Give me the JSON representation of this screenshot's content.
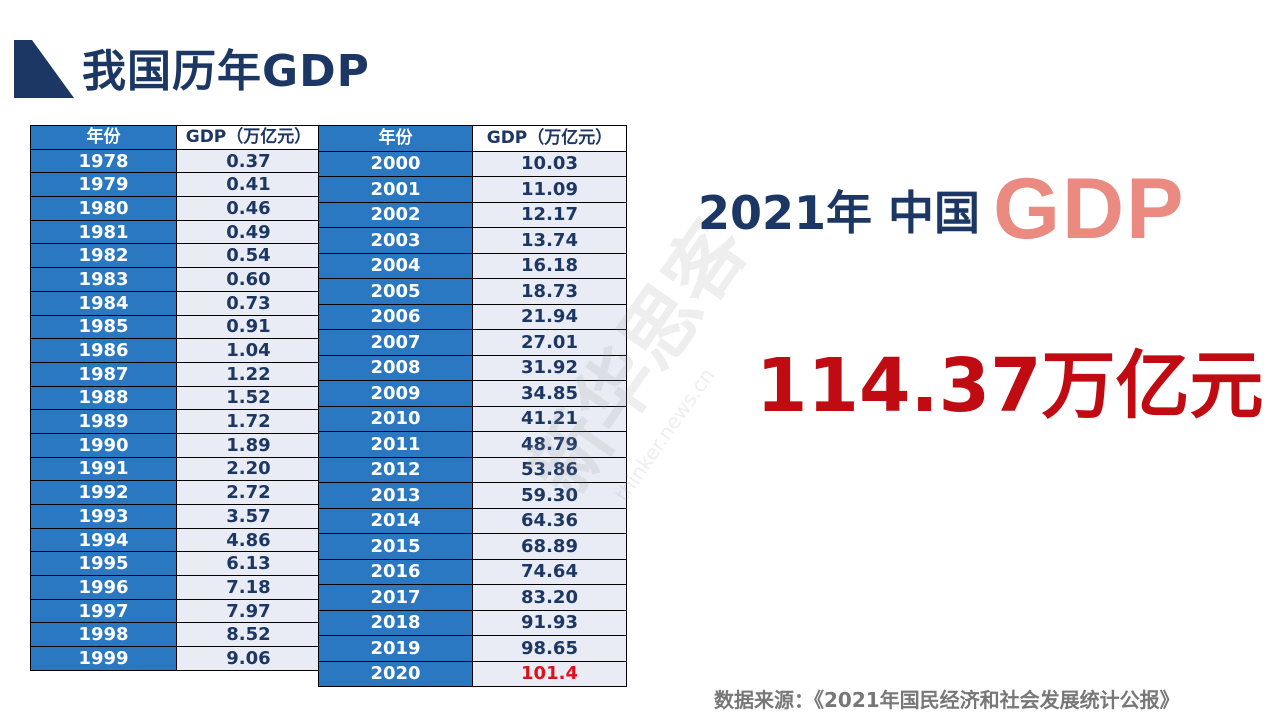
{
  "page": {
    "title": "我国历年GDP",
    "headline_lead": "2021年 中国",
    "headline_gdp": "GDP",
    "headline_value": "114.37万亿元",
    "source": "数据来源：《2021年国民经济和社会发展统计公报》"
  },
  "table": {
    "header_year": "年份",
    "header_gdp": "GDP（万亿元）",
    "left_rows": [
      {
        "year": "1978",
        "gdp": "0.37"
      },
      {
        "year": "1979",
        "gdp": "0.41"
      },
      {
        "year": "1980",
        "gdp": "0.46"
      },
      {
        "year": "1981",
        "gdp": "0.49"
      },
      {
        "year": "1982",
        "gdp": "0.54"
      },
      {
        "year": "1983",
        "gdp": "0.60"
      },
      {
        "year": "1984",
        "gdp": "0.73"
      },
      {
        "year": "1985",
        "gdp": "0.91"
      },
      {
        "year": "1986",
        "gdp": "1.04"
      },
      {
        "year": "1987",
        "gdp": "1.22"
      },
      {
        "year": "1988",
        "gdp": "1.52"
      },
      {
        "year": "1989",
        "gdp": "1.72"
      },
      {
        "year": "1990",
        "gdp": "1.89"
      },
      {
        "year": "1991",
        "gdp": "2.20"
      },
      {
        "year": "1992",
        "gdp": "2.72"
      },
      {
        "year": "1993",
        "gdp": "3.57"
      },
      {
        "year": "1994",
        "gdp": "4.86"
      },
      {
        "year": "1995",
        "gdp": "6.13"
      },
      {
        "year": "1996",
        "gdp": "7.18"
      },
      {
        "year": "1997",
        "gdp": "7.97"
      },
      {
        "year": "1998",
        "gdp": "8.52"
      },
      {
        "year": "1999",
        "gdp": "9.06"
      }
    ],
    "right_rows": [
      {
        "year": "2000",
        "gdp": "10.03"
      },
      {
        "year": "2001",
        "gdp": "11.09"
      },
      {
        "year": "2002",
        "gdp": "12.17"
      },
      {
        "year": "2003",
        "gdp": "13.74"
      },
      {
        "year": "2004",
        "gdp": "16.18"
      },
      {
        "year": "2005",
        "gdp": "18.73"
      },
      {
        "year": "2006",
        "gdp": "21.94"
      },
      {
        "year": "2007",
        "gdp": "27.01"
      },
      {
        "year": "2008",
        "gdp": "31.92"
      },
      {
        "year": "2009",
        "gdp": "34.85"
      },
      {
        "year": "2010",
        "gdp": "41.21"
      },
      {
        "year": "2011",
        "gdp": "48.79"
      },
      {
        "year": "2012",
        "gdp": "53.86"
      },
      {
        "year": "2013",
        "gdp": "59.30"
      },
      {
        "year": "2014",
        "gdp": "64.36"
      },
      {
        "year": "2015",
        "gdp": "68.89"
      },
      {
        "year": "2016",
        "gdp": "74.64"
      },
      {
        "year": "2017",
        "gdp": "83.20"
      },
      {
        "year": "2018",
        "gdp": "91.93"
      },
      {
        "year": "2019",
        "gdp": "98.65"
      },
      {
        "year": "2020",
        "gdp": "101.4",
        "highlight": true
      }
    ]
  },
  "watermark": {
    "text": "新华思客",
    "url": "thinker.news.cn"
  },
  "colors": {
    "title": "#1c3763",
    "year_cell_bg": "#2a78c1",
    "value_cell_bg": "#e9ecf4",
    "gdp_big": "#ea8a80",
    "big_value": "#c00b12",
    "highlight": "#e0101a",
    "source": "#777777"
  }
}
